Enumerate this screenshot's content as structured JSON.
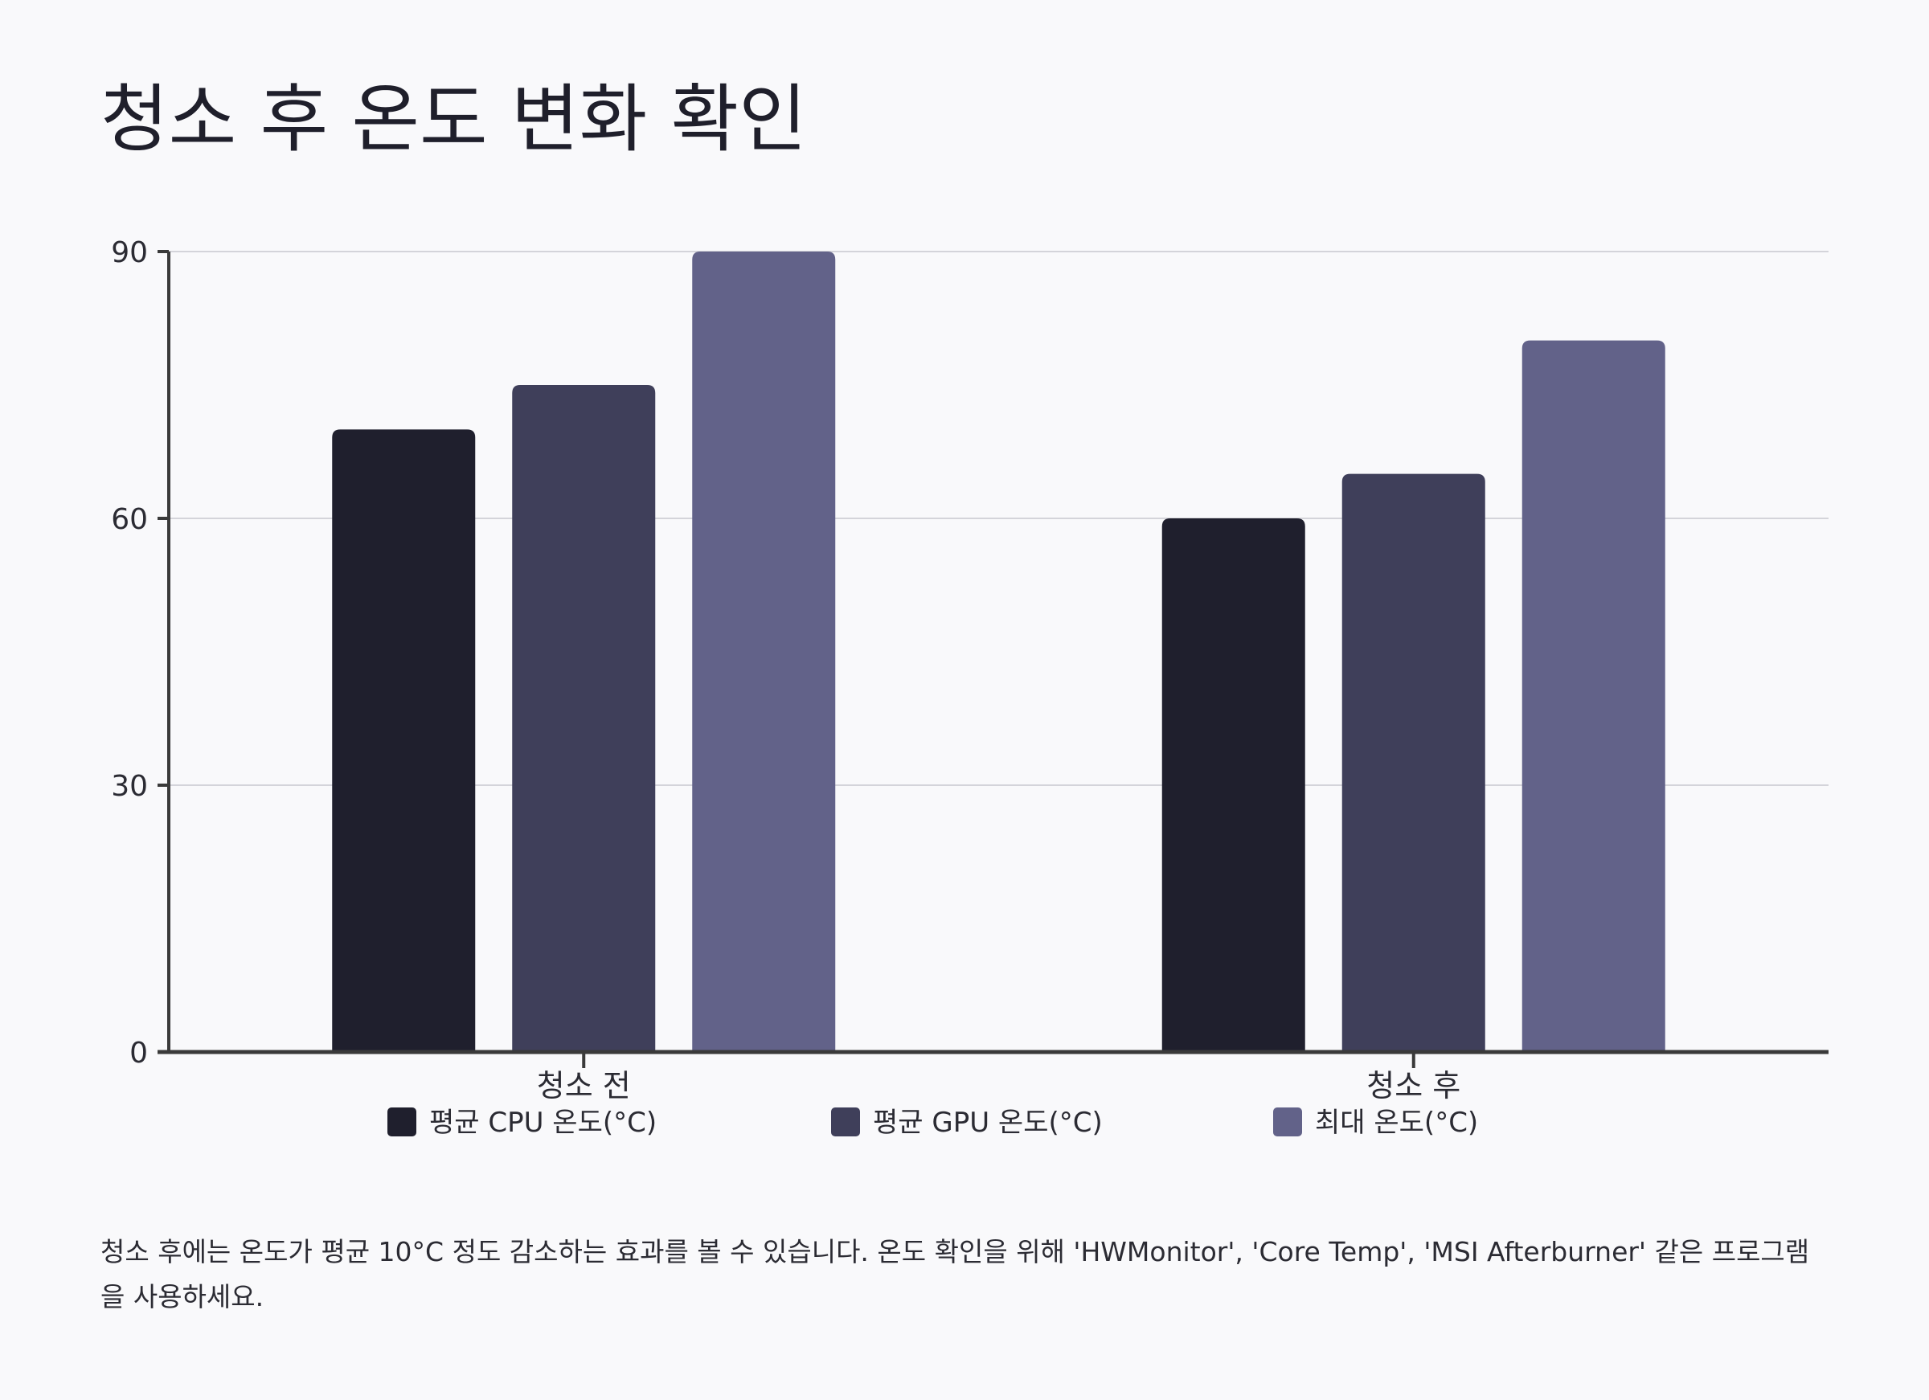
{
  "title": "청소 후 온도 변화 확인",
  "note": "청소 후에는 온도가 평균 10°C 정도 감소하는 효과를 볼 수 있습니다. 온도 확인을 위해 'HWMonitor', 'Core Temp', 'MSI Afterburner' 같은 프로그램을 사용하세요.",
  "colors": {
    "background": "#f9f9fb",
    "text": "#1f1f2b",
    "grid": "#d4d4da",
    "axis": "#3a3a3a"
  },
  "chart_data": {
    "type": "bar",
    "title": "청소 후 온도 변화 확인",
    "categories": [
      "청소 전",
      "청소 후"
    ],
    "series": [
      {
        "name": "평균 CPU 온도(°C)",
        "values": [
          70,
          60
        ],
        "color": "#1f1f2d"
      },
      {
        "name": "평균 GPU 온도(°C)",
        "values": [
          75,
          65
        ],
        "color": "#3f3f5a"
      },
      {
        "name": "최대 온도(°C)",
        "values": [
          90,
          80
        ],
        "color": "#626289"
      }
    ],
    "y_ticks": [
      0,
      30,
      60,
      90
    ],
    "ylim": [
      0,
      90
    ],
    "grid": true,
    "legend_position": "bottom"
  }
}
